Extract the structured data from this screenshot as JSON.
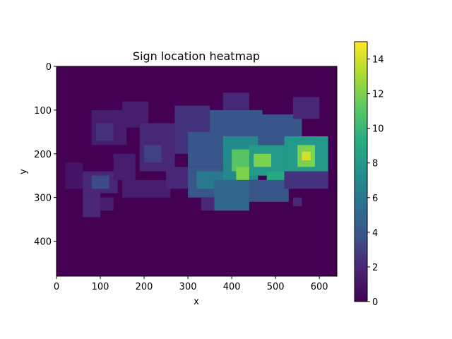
{
  "chart_data": {
    "type": "heatmap",
    "title": "Sign location heatmap",
    "xlabel": "x",
    "ylabel": "y",
    "xlim": [
      0,
      640
    ],
    "ylim": [
      480,
      0
    ],
    "y_axis_inverted": true,
    "x_ticks": [
      0,
      100,
      200,
      300,
      400,
      500,
      600
    ],
    "y_ticks": [
      0,
      100,
      200,
      300,
      400
    ],
    "colormap": "viridis",
    "colorbar": {
      "min": 0,
      "max": 15,
      "ticks": [
        0,
        2,
        4,
        6,
        8,
        10,
        12,
        14
      ]
    },
    "background_value": 0,
    "regions": [
      {
        "x": [
          80,
          160
        ],
        "y": [
          100,
          180
        ],
        "value": 1.5
      },
      {
        "x": [
          90,
          130
        ],
        "y": [
          130,
          170
        ],
        "value": 2.5
      },
      {
        "x": [
          150,
          210
        ],
        "y": [
          80,
          140
        ],
        "value": 1.5
      },
      {
        "x": [
          20,
          60
        ],
        "y": [
          220,
          280
        ],
        "value": 1
      },
      {
        "x": [
          60,
          140
        ],
        "y": [
          240,
          290
        ],
        "value": 2
      },
      {
        "x": [
          80,
          120
        ],
        "y": [
          250,
          280
        ],
        "value": 3.5
      },
      {
        "x": [
          60,
          100
        ],
        "y": [
          290,
          345
        ],
        "value": 2
      },
      {
        "x": [
          130,
          180
        ],
        "y": [
          200,
          260
        ],
        "value": 1.5
      },
      {
        "x": [
          150,
          260
        ],
        "y": [
          260,
          300
        ],
        "value": 1.5
      },
      {
        "x": [
          190,
          270
        ],
        "y": [
          130,
          240
        ],
        "value": 2
      },
      {
        "x": [
          200,
          240
        ],
        "y": [
          180,
          220
        ],
        "value": 3
      },
      {
        "x": [
          250,
          310
        ],
        "y": [
          230,
          280
        ],
        "value": 2
      },
      {
        "x": [
          270,
          350
        ],
        "y": [
          90,
          200
        ],
        "value": 2.5
      },
      {
        "x": [
          300,
          380
        ],
        "y": [
          150,
          230
        ],
        "value": 4
      },
      {
        "x": [
          300,
          400
        ],
        "y": [
          230,
          300
        ],
        "value": 4
      },
      {
        "x": [
          320,
          380
        ],
        "y": [
          240,
          280
        ],
        "value": 6
      },
      {
        "x": [
          350,
          470
        ],
        "y": [
          100,
          180
        ],
        "value": 4
      },
      {
        "x": [
          380,
          440
        ],
        "y": [
          60,
          100
        ],
        "value": 2
      },
      {
        "x": [
          380,
          460
        ],
        "y": [
          160,
          260
        ],
        "value": 7
      },
      {
        "x": [
          400,
          440
        ],
        "y": [
          190,
          240
        ],
        "value": 11
      },
      {
        "x": [
          410,
          440
        ],
        "y": [
          230,
          260
        ],
        "value": 12
      },
      {
        "x": [
          360,
          440
        ],
        "y": [
          260,
          330
        ],
        "value": 5
      },
      {
        "x": [
          440,
          520
        ],
        "y": [
          180,
          250
        ],
        "value": 8
      },
      {
        "x": [
          450,
          490
        ],
        "y": [
          200,
          230
        ],
        "value": 12
      },
      {
        "x": [
          480,
          520
        ],
        "y": [
          240,
          270
        ],
        "value": 9
      },
      {
        "x": [
          440,
          530
        ],
        "y": [
          260,
          310
        ],
        "value": 4
      },
      {
        "x": [
          460,
          560
        ],
        "y": [
          110,
          180
        ],
        "value": 4
      },
      {
        "x": [
          520,
          620
        ],
        "y": [
          160,
          250
        ],
        "value": 8
      },
      {
        "x": [
          550,
          590
        ],
        "y": [
          180,
          230
        ],
        "value": 12
      },
      {
        "x": [
          560,
          580
        ],
        "y": [
          195,
          215
        ],
        "value": 14
      },
      {
        "x": [
          540,
          600
        ],
        "y": [
          70,
          120
        ],
        "value": 2
      },
      {
        "x": [
          520,
          620
        ],
        "y": [
          240,
          280
        ],
        "value": 2.5
      },
      {
        "x": [
          330,
          360
        ],
        "y": [
          300,
          330
        ],
        "value": 2
      },
      {
        "x": [
          540,
          560
        ],
        "y": [
          300,
          320
        ],
        "value": 2
      },
      {
        "x": [
          100,
          130
        ],
        "y": [
          300,
          330
        ],
        "value": 1.5
      }
    ]
  }
}
